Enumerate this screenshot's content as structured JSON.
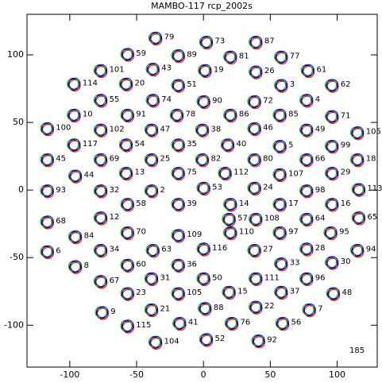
{
  "chart_data": {
    "type": "scatter",
    "title": "MAMBO-117 rcp_2002s",
    "labels": [
      "79",
      "73",
      "87",
      "59",
      "89",
      "81",
      "77",
      "101",
      "43",
      "19",
      "26",
      "61",
      "114",
      "20",
      "51",
      "3",
      "62",
      "55",
      "74",
      "90",
      "72",
      "4",
      "10",
      "91",
      "78",
      "86",
      "85",
      "71",
      "100",
      "102",
      "47",
      "38",
      "46",
      "49",
      "105",
      "117",
      "54",
      "35",
      "40",
      "5",
      "99",
      "45",
      "69",
      "25",
      "82",
      "80",
      "66",
      "18",
      "44",
      "13",
      "75",
      "112",
      "107",
      "29",
      "93",
      "32",
      "2",
      "53",
      "24",
      "98",
      "113",
      "12",
      "58",
      "39",
      "14",
      "17",
      "16",
      "68",
      "57",
      "108",
      "64",
      "65",
      "84",
      "70",
      "109",
      "110",
      "97",
      "95",
      "6",
      "34",
      "63",
      "116",
      "27",
      "28",
      "94",
      "8",
      "60",
      "36",
      "33",
      "30",
      "67",
      "31",
      "50",
      "111",
      "96",
      "23",
      "105",
      "15",
      "37",
      "48",
      "9",
      "21",
      "88",
      "22",
      "7",
      "115",
      "41",
      "76",
      "56",
      "104",
      "52",
      "92"
    ],
    "x": [
      -36,
      2,
      39,
      -57,
      -19,
      20,
      58,
      -77,
      -38,
      1,
      39,
      78,
      -97,
      -58,
      -19,
      58,
      96,
      -77,
      -38,
      0,
      38,
      77,
      -97,
      -57,
      -20,
      20,
      57,
      96,
      -117,
      -77,
      -39,
      -1,
      38,
      77,
      115,
      -97,
      -58,
      -19,
      18,
      57,
      96,
      -117,
      -77,
      -39,
      -1,
      38,
      77,
      115,
      -96,
      -58,
      -19,
      16,
      57,
      96,
      -117,
      -77,
      -39,
      0,
      38,
      77,
      116,
      -77,
      -57,
      -19,
      20,
      57,
      96,
      -117,
      19,
      39,
      77,
      116,
      -96,
      -57,
      -19,
      20,
      57,
      95,
      -117,
      -77,
      -38,
      0,
      38,
      77,
      115,
      -96,
      -57,
      -19,
      58,
      96,
      -77,
      -39,
      0,
      39,
      77,
      -57,
      -19,
      19,
      58,
      97,
      -76,
      -39,
      1,
      39,
      79,
      -57,
      -18,
      21,
      59,
      -36,
      2,
      41
    ],
    "values": [
      112,
      109,
      109,
      100,
      99,
      98,
      98,
      88,
      89,
      88,
      87,
      88,
      78,
      78,
      77,
      77,
      77,
      66,
      66,
      65,
      65,
      66,
      55,
      55,
      55,
      55,
      55,
      54,
      45,
      44,
      44,
      44,
      45,
      44,
      42,
      33,
      33,
      33,
      33,
      32,
      32,
      22,
      22,
      22,
      22,
      22,
      22,
      22,
      10,
      12,
      12,
      12,
      11,
      12,
      -1,
      -1,
      -1,
      1,
      1,
      -1,
      0,
      -21,
      -11,
      -11,
      -11,
      -11,
      -11,
      -24,
      -22,
      -22,
      -22,
      -21,
      -35,
      -32,
      -34,
      -32,
      -32,
      -32,
      -46,
      -45,
      -45,
      -44,
      -45,
      -44,
      -45,
      -57,
      -56,
      -56,
      -55,
      -54,
      -68,
      -66,
      -66,
      -66,
      -66,
      -77,
      -77,
      -76,
      -76,
      -77,
      -91,
      -89,
      -88,
      -87,
      -89,
      -101,
      -99,
      -99,
      -99,
      -113,
      -111,
      -112
    ],
    "colors": [
      "#000000",
      "#ff0000",
      "#00b000",
      "#0000ff"
    ],
    "annotation": "185",
    "xlim": [
      -132,
      130
    ],
    "ylim": [
      -131,
      130
    ],
    "xticks": [
      -100,
      -50,
      0,
      50,
      100
    ],
    "yticks": [
      -100,
      -50,
      0,
      50,
      100
    ]
  }
}
